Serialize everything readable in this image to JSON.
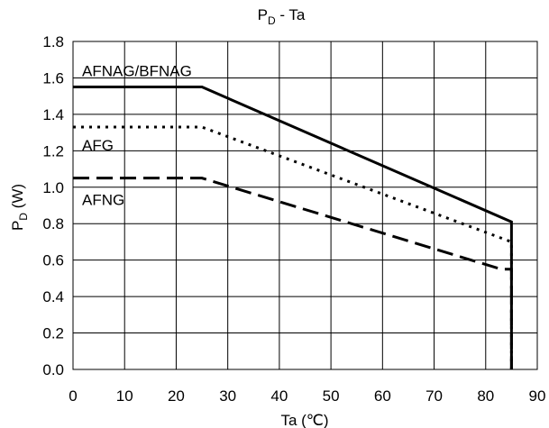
{
  "chart_data": {
    "type": "line",
    "title": "Pd - Ta",
    "title_main": "P",
    "title_sub": "D",
    "title_rest": " - Ta",
    "xlabel": "Ta (℃)",
    "ylabel_main": "P",
    "ylabel_sub": "D",
    "ylabel_rest": " (W)",
    "xlim": [
      0,
      90
    ],
    "ylim": [
      0,
      1.8
    ],
    "x_ticks": [
      "0",
      "10",
      "20",
      "30",
      "40",
      "50",
      "60",
      "70",
      "80",
      "90"
    ],
    "y_ticks": [
      "0.0",
      "0.2",
      "0.4",
      "0.6",
      "0.8",
      "1.0",
      "1.2",
      "1.4",
      "1.6",
      "1.8"
    ],
    "grid": true,
    "series": [
      {
        "name": "AFNAG/BFNAG",
        "style": "solid",
        "x": [
          0,
          25,
          85,
          85
        ],
        "y": [
          1.55,
          1.55,
          0.81,
          0
        ]
      },
      {
        "name": "AFG",
        "style": "dotted",
        "x": [
          0,
          25,
          85,
          85
        ],
        "y": [
          1.33,
          1.33,
          0.7,
          0
        ]
      },
      {
        "name": "AFNG",
        "style": "dashed",
        "x": [
          0,
          25,
          83,
          85,
          85
        ],
        "y": [
          1.05,
          1.05,
          0.55,
          0.55,
          0
        ]
      }
    ]
  },
  "colors": {
    "line": "#000000",
    "grid": "#000000",
    "background": "#ffffff"
  }
}
